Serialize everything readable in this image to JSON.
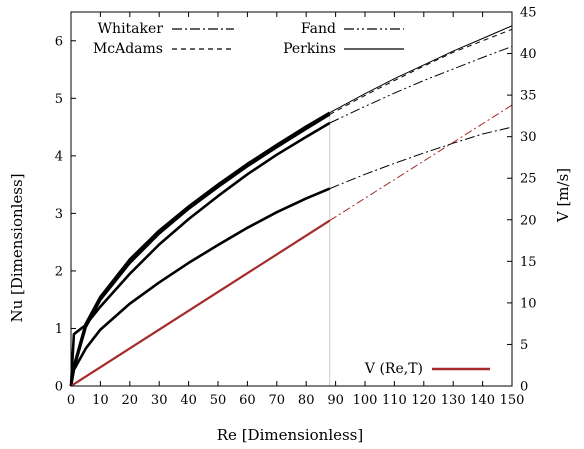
{
  "chart_data": {
    "type": "line",
    "xlabel": "Re [Dimensionless]",
    "ylabel": "Nu [Dimensionless]",
    "y2label": "V [m/s]",
    "xlim": [
      0,
      150
    ],
    "ylim": [
      0,
      6.5
    ],
    "y2lim": [
      0,
      45
    ],
    "xticks": [
      "0",
      "10",
      "20",
      "30",
      "40",
      "50",
      "60",
      "70",
      "80",
      "90",
      "100",
      "110",
      "120",
      "130",
      "140",
      "150"
    ],
    "yticks": [
      "0",
      "1",
      "2",
      "3",
      "4",
      "5",
      "6"
    ],
    "y2ticks": [
      "0",
      "5",
      "10",
      "15",
      "20",
      "25",
      "30",
      "35",
      "40",
      "45"
    ],
    "x_cutoff": 88,
    "grid": false,
    "legend_position": "top",
    "legend": [
      {
        "name": "Whitaker",
        "style": "dash-dot"
      },
      {
        "name": "Fand",
        "style": "dash-dot-dot"
      },
      {
        "name": "McAdams",
        "style": "dashed"
      },
      {
        "name": "Perkins",
        "style": "solid"
      },
      {
        "name": "V (Re,T)",
        "style": "solid-red"
      }
    ],
    "series": [
      {
        "name": "Perkins",
        "axis": "left",
        "color": "#000000",
        "x": [
          0,
          1,
          5,
          10,
          20,
          30,
          40,
          50,
          60,
          70,
          80,
          88,
          100,
          110,
          120,
          130,
          140,
          150
        ],
        "y": [
          0,
          0.35,
          1.08,
          1.55,
          2.2,
          2.7,
          3.12,
          3.5,
          3.86,
          4.19,
          4.51,
          4.75,
          5.08,
          5.34,
          5.58,
          5.82,
          6.04,
          6.26
        ]
      },
      {
        "name": "McAdams",
        "axis": "left",
        "color": "#000000",
        "x": [
          0,
          1,
          5,
          10,
          20,
          30,
          40,
          50,
          60,
          70,
          80,
          88,
          100,
          110,
          120,
          130,
          140,
          150
        ],
        "y": [
          0,
          0.3,
          1.02,
          1.5,
          2.14,
          2.65,
          3.08,
          3.46,
          3.82,
          4.15,
          4.47,
          4.72,
          5.05,
          5.31,
          5.56,
          5.8,
          6.0,
          6.2
        ]
      },
      {
        "name": "Fand",
        "axis": "left",
        "color": "#000000",
        "x": [
          0,
          1,
          5,
          10,
          20,
          30,
          40,
          50,
          60,
          70,
          80,
          88,
          100,
          110,
          120,
          130,
          140,
          150
        ],
        "y": [
          0,
          0.9,
          1.06,
          1.38,
          1.95,
          2.46,
          2.9,
          3.3,
          3.68,
          4.02,
          4.33,
          4.57,
          4.86,
          5.09,
          5.31,
          5.51,
          5.71,
          5.9
        ]
      },
      {
        "name": "Whitaker",
        "axis": "left",
        "color": "#000000",
        "x": [
          0,
          1,
          5,
          10,
          20,
          30,
          40,
          50,
          60,
          70,
          80,
          88,
          100,
          110,
          120,
          130,
          140,
          150
        ],
        "y": [
          0,
          0.28,
          0.65,
          0.98,
          1.43,
          1.8,
          2.14,
          2.45,
          2.75,
          3.02,
          3.26,
          3.43,
          3.68,
          3.87,
          4.05,
          4.22,
          4.38,
          4.5
        ]
      },
      {
        "name": "V (Re,T)",
        "axis": "right",
        "color": "#a52a2a",
        "x": [
          0,
          88,
          150
        ],
        "y": [
          0,
          19.9,
          33.8
        ]
      }
    ]
  }
}
